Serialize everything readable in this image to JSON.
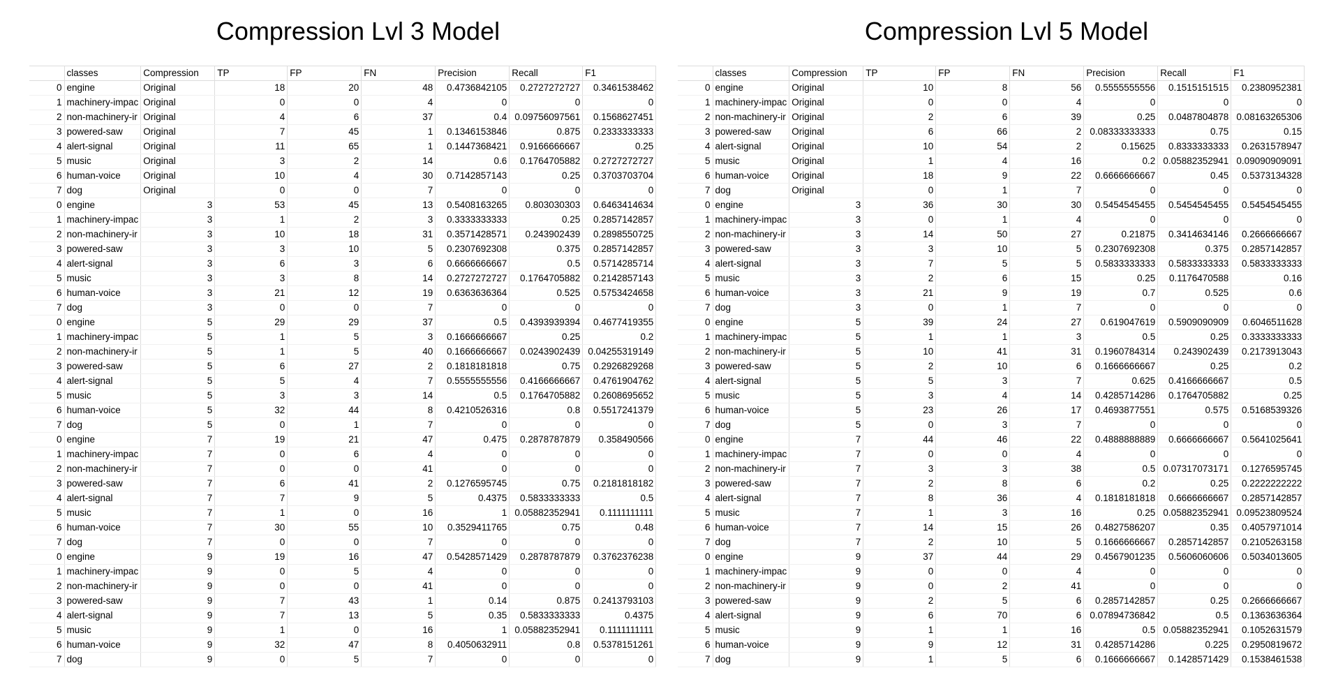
{
  "columns": [
    "",
    "classes",
    "Compression",
    "TP",
    "FP",
    "FN",
    "Precision",
    "Recall",
    "F1"
  ],
  "panels": [
    {
      "title": "Compression Lvl 3 Model",
      "rows": [
        [
          "0",
          "engine",
          "Original",
          "18",
          "20",
          "48",
          "0.4736842105",
          "0.2727272727",
          "0.3461538462"
        ],
        [
          "1",
          "machinery-impac",
          "Original",
          "0",
          "0",
          "4",
          "0",
          "0",
          "0"
        ],
        [
          "2",
          "non-machinery-ir",
          "Original",
          "4",
          "6",
          "37",
          "0.4",
          "0.09756097561",
          "0.1568627451"
        ],
        [
          "3",
          "powered-saw",
          "Original",
          "7",
          "45",
          "1",
          "0.1346153846",
          "0.875",
          "0.2333333333"
        ],
        [
          "4",
          "alert-signal",
          "Original",
          "11",
          "65",
          "1",
          "0.1447368421",
          "0.9166666667",
          "0.25"
        ],
        [
          "5",
          "music",
          "Original",
          "3",
          "2",
          "14",
          "0.6",
          "0.1764705882",
          "0.2727272727"
        ],
        [
          "6",
          "human-voice",
          "Original",
          "10",
          "4",
          "30",
          "0.7142857143",
          "0.25",
          "0.3703703704"
        ],
        [
          "7",
          "dog",
          "Original",
          "0",
          "0",
          "7",
          "0",
          "0",
          "0"
        ],
        [
          "0",
          "engine",
          "3",
          "53",
          "45",
          "13",
          "0.5408163265",
          "0.803030303",
          "0.6463414634"
        ],
        [
          "1",
          "machinery-impac",
          "3",
          "1",
          "2",
          "3",
          "0.3333333333",
          "0.25",
          "0.2857142857"
        ],
        [
          "2",
          "non-machinery-ir",
          "3",
          "10",
          "18",
          "31",
          "0.3571428571",
          "0.243902439",
          "0.2898550725"
        ],
        [
          "3",
          "powered-saw",
          "3",
          "3",
          "10",
          "5",
          "0.2307692308",
          "0.375",
          "0.2857142857"
        ],
        [
          "4",
          "alert-signal",
          "3",
          "6",
          "3",
          "6",
          "0.6666666667",
          "0.5",
          "0.5714285714"
        ],
        [
          "5",
          "music",
          "3",
          "3",
          "8",
          "14",
          "0.2727272727",
          "0.1764705882",
          "0.2142857143"
        ],
        [
          "6",
          "human-voice",
          "3",
          "21",
          "12",
          "19",
          "0.6363636364",
          "0.525",
          "0.5753424658"
        ],
        [
          "7",
          "dog",
          "3",
          "0",
          "0",
          "7",
          "0",
          "0",
          "0"
        ],
        [
          "0",
          "engine",
          "5",
          "29",
          "29",
          "37",
          "0.5",
          "0.4393939394",
          "0.4677419355"
        ],
        [
          "1",
          "machinery-impac",
          "5",
          "1",
          "5",
          "3",
          "0.1666666667",
          "0.25",
          "0.2"
        ],
        [
          "2",
          "non-machinery-ir",
          "5",
          "1",
          "5",
          "40",
          "0.1666666667",
          "0.0243902439",
          "0.04255319149"
        ],
        [
          "3",
          "powered-saw",
          "5",
          "6",
          "27",
          "2",
          "0.1818181818",
          "0.75",
          "0.2926829268"
        ],
        [
          "4",
          "alert-signal",
          "5",
          "5",
          "4",
          "7",
          "0.5555555556",
          "0.4166666667",
          "0.4761904762"
        ],
        [
          "5",
          "music",
          "5",
          "3",
          "3",
          "14",
          "0.5",
          "0.1764705882",
          "0.2608695652"
        ],
        [
          "6",
          "human-voice",
          "5",
          "32",
          "44",
          "8",
          "0.4210526316",
          "0.8",
          "0.5517241379"
        ],
        [
          "7",
          "dog",
          "5",
          "0",
          "1",
          "7",
          "0",
          "0",
          "0"
        ],
        [
          "0",
          "engine",
          "7",
          "19",
          "21",
          "47",
          "0.475",
          "0.2878787879",
          "0.358490566"
        ],
        [
          "1",
          "machinery-impac",
          "7",
          "0",
          "6",
          "4",
          "0",
          "0",
          "0"
        ],
        [
          "2",
          "non-machinery-ir",
          "7",
          "0",
          "0",
          "41",
          "0",
          "0",
          "0"
        ],
        [
          "3",
          "powered-saw",
          "7",
          "6",
          "41",
          "2",
          "0.1276595745",
          "0.75",
          "0.2181818182"
        ],
        [
          "4",
          "alert-signal",
          "7",
          "7",
          "9",
          "5",
          "0.4375",
          "0.5833333333",
          "0.5"
        ],
        [
          "5",
          "music",
          "7",
          "1",
          "0",
          "16",
          "1",
          "0.05882352941",
          "0.1111111111"
        ],
        [
          "6",
          "human-voice",
          "7",
          "30",
          "55",
          "10",
          "0.3529411765",
          "0.75",
          "0.48"
        ],
        [
          "7",
          "dog",
          "7",
          "0",
          "0",
          "7",
          "0",
          "0",
          "0"
        ],
        [
          "0",
          "engine",
          "9",
          "19",
          "16",
          "47",
          "0.5428571429",
          "0.2878787879",
          "0.3762376238"
        ],
        [
          "1",
          "machinery-impac",
          "9",
          "0",
          "5",
          "4",
          "0",
          "0",
          "0"
        ],
        [
          "2",
          "non-machinery-ir",
          "9",
          "0",
          "0",
          "41",
          "0",
          "0",
          "0"
        ],
        [
          "3",
          "powered-saw",
          "9",
          "7",
          "43",
          "1",
          "0.14",
          "0.875",
          "0.2413793103"
        ],
        [
          "4",
          "alert-signal",
          "9",
          "7",
          "13",
          "5",
          "0.35",
          "0.5833333333",
          "0.4375"
        ],
        [
          "5",
          "music",
          "9",
          "1",
          "0",
          "16",
          "1",
          "0.05882352941",
          "0.1111111111"
        ],
        [
          "6",
          "human-voice",
          "9",
          "32",
          "47",
          "8",
          "0.4050632911",
          "0.8",
          "0.5378151261"
        ],
        [
          "7",
          "dog",
          "9",
          "0",
          "5",
          "7",
          "0",
          "0",
          "0"
        ]
      ]
    },
    {
      "title": "Compression Lvl 5 Model",
      "rows": [
        [
          "0",
          "engine",
          "Original",
          "10",
          "8",
          "56",
          "0.5555555556",
          "0.1515151515",
          "0.2380952381"
        ],
        [
          "1",
          "machinery-impac",
          "Original",
          "0",
          "0",
          "4",
          "0",
          "0",
          "0"
        ],
        [
          "2",
          "non-machinery-ir",
          "Original",
          "2",
          "6",
          "39",
          "0.25",
          "0.0487804878",
          "0.08163265306"
        ],
        [
          "3",
          "powered-saw",
          "Original",
          "6",
          "66",
          "2",
          "0.08333333333",
          "0.75",
          "0.15"
        ],
        [
          "4",
          "alert-signal",
          "Original",
          "10",
          "54",
          "2",
          "0.15625",
          "0.8333333333",
          "0.2631578947"
        ],
        [
          "5",
          "music",
          "Original",
          "1",
          "4",
          "16",
          "0.2",
          "0.05882352941",
          "0.09090909091"
        ],
        [
          "6",
          "human-voice",
          "Original",
          "18",
          "9",
          "22",
          "0.6666666667",
          "0.45",
          "0.5373134328"
        ],
        [
          "7",
          "dog",
          "Original",
          "0",
          "1",
          "7",
          "0",
          "0",
          "0"
        ],
        [
          "0",
          "engine",
          "3",
          "36",
          "30",
          "30",
          "0.5454545455",
          "0.5454545455",
          "0.5454545455"
        ],
        [
          "1",
          "machinery-impac",
          "3",
          "0",
          "1",
          "4",
          "0",
          "0",
          "0"
        ],
        [
          "2",
          "non-machinery-ir",
          "3",
          "14",
          "50",
          "27",
          "0.21875",
          "0.3414634146",
          "0.2666666667"
        ],
        [
          "3",
          "powered-saw",
          "3",
          "3",
          "10",
          "5",
          "0.2307692308",
          "0.375",
          "0.2857142857"
        ],
        [
          "4",
          "alert-signal",
          "3",
          "7",
          "5",
          "5",
          "0.5833333333",
          "0.5833333333",
          "0.5833333333"
        ],
        [
          "5",
          "music",
          "3",
          "2",
          "6",
          "15",
          "0.25",
          "0.1176470588",
          "0.16"
        ],
        [
          "6",
          "human-voice",
          "3",
          "21",
          "9",
          "19",
          "0.7",
          "0.525",
          "0.6"
        ],
        [
          "7",
          "dog",
          "3",
          "0",
          "1",
          "7",
          "0",
          "0",
          "0"
        ],
        [
          "0",
          "engine",
          "5",
          "39",
          "24",
          "27",
          "0.619047619",
          "0.5909090909",
          "0.6046511628"
        ],
        [
          "1",
          "machinery-impac",
          "5",
          "1",
          "1",
          "3",
          "0.5",
          "0.25",
          "0.3333333333"
        ],
        [
          "2",
          "non-machinery-ir",
          "5",
          "10",
          "41",
          "31",
          "0.1960784314",
          "0.243902439",
          "0.2173913043"
        ],
        [
          "3",
          "powered-saw",
          "5",
          "2",
          "10",
          "6",
          "0.1666666667",
          "0.25",
          "0.2"
        ],
        [
          "4",
          "alert-signal",
          "5",
          "5",
          "3",
          "7",
          "0.625",
          "0.4166666667",
          "0.5"
        ],
        [
          "5",
          "music",
          "5",
          "3",
          "4",
          "14",
          "0.4285714286",
          "0.1764705882",
          "0.25"
        ],
        [
          "6",
          "human-voice",
          "5",
          "23",
          "26",
          "17",
          "0.4693877551",
          "0.575",
          "0.5168539326"
        ],
        [
          "7",
          "dog",
          "5",
          "0",
          "3",
          "7",
          "0",
          "0",
          "0"
        ],
        [
          "0",
          "engine",
          "7",
          "44",
          "46",
          "22",
          "0.4888888889",
          "0.6666666667",
          "0.5641025641"
        ],
        [
          "1",
          "machinery-impac",
          "7",
          "0",
          "0",
          "4",
          "0",
          "0",
          "0"
        ],
        [
          "2",
          "non-machinery-ir",
          "7",
          "3",
          "3",
          "38",
          "0.5",
          "0.07317073171",
          "0.1276595745"
        ],
        [
          "3",
          "powered-saw",
          "7",
          "2",
          "8",
          "6",
          "0.2",
          "0.25",
          "0.2222222222"
        ],
        [
          "4",
          "alert-signal",
          "7",
          "8",
          "36",
          "4",
          "0.1818181818",
          "0.6666666667",
          "0.2857142857"
        ],
        [
          "5",
          "music",
          "7",
          "1",
          "3",
          "16",
          "0.25",
          "0.05882352941",
          "0.09523809524"
        ],
        [
          "6",
          "human-voice",
          "7",
          "14",
          "15",
          "26",
          "0.4827586207",
          "0.35",
          "0.4057971014"
        ],
        [
          "7",
          "dog",
          "7",
          "2",
          "10",
          "5",
          "0.1666666667",
          "0.2857142857",
          "0.2105263158"
        ],
        [
          "0",
          "engine",
          "9",
          "37",
          "44",
          "29",
          "0.4567901235",
          "0.5606060606",
          "0.5034013605"
        ],
        [
          "1",
          "machinery-impac",
          "9",
          "0",
          "0",
          "4",
          "0",
          "0",
          "0"
        ],
        [
          "2",
          "non-machinery-ir",
          "9",
          "0",
          "2",
          "41",
          "0",
          "0",
          "0"
        ],
        [
          "3",
          "powered-saw",
          "9",
          "2",
          "5",
          "6",
          "0.2857142857",
          "0.25",
          "0.2666666667"
        ],
        [
          "4",
          "alert-signal",
          "9",
          "6",
          "70",
          "6",
          "0.07894736842",
          "0.5",
          "0.1363636364"
        ],
        [
          "5",
          "music",
          "9",
          "1",
          "1",
          "16",
          "0.5",
          "0.05882352941",
          "0.1052631579"
        ],
        [
          "6",
          "human-voice",
          "9",
          "9",
          "12",
          "31",
          "0.4285714286",
          "0.225",
          "0.2950819672"
        ],
        [
          "7",
          "dog",
          "9",
          "1",
          "5",
          "6",
          "0.1666666667",
          "0.1428571429",
          "0.1538461538"
        ]
      ]
    }
  ]
}
